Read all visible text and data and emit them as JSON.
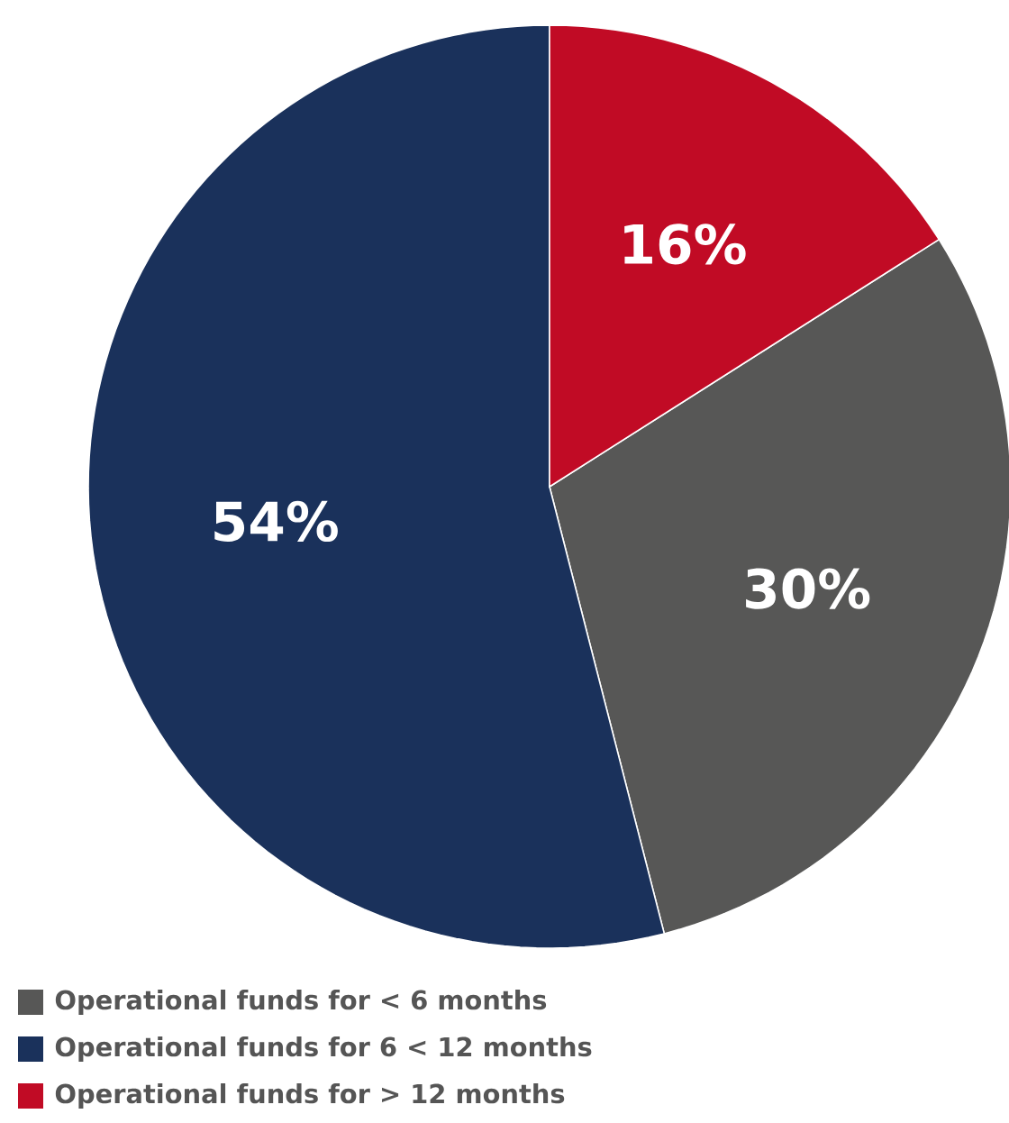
{
  "chart_data": {
    "type": "pie",
    "categories": [
      "Operational funds for < 6 months",
      "Operational funds for 6 < 12 months",
      "Operational funds for > 12 months"
    ],
    "values": [
      30,
      54,
      16
    ],
    "value_labels": [
      "30%",
      "54%",
      "16%"
    ],
    "colors": [
      "#575756",
      "#1a315b",
      "#c10b25"
    ],
    "legend": "bottom"
  }
}
